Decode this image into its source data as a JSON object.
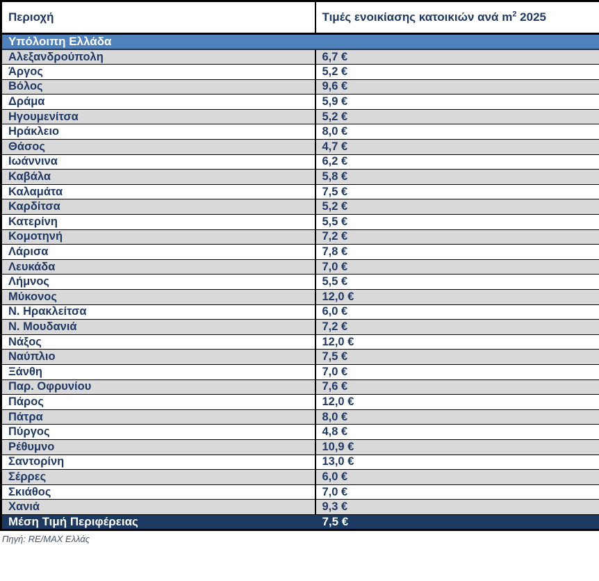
{
  "table": {
    "header": {
      "area_label": "Περιοχή",
      "price_label_prefix": "Τιμές ενοικίασης κατοικιών ανά m",
      "price_label_sup": "2",
      "price_label_suffix": " 2025"
    },
    "section_header": "Υπόλοιπη Ελλάδα",
    "rows": [
      {
        "area": "Αλεξανδρούπολη",
        "price": "6,7 €"
      },
      {
        "area": "Άργος",
        "price": "5,2 €"
      },
      {
        "area": "Βόλος",
        "price": "9,6 €"
      },
      {
        "area": "Δράμα",
        "price": "5,9 €"
      },
      {
        "area": "Ηγουμενίτσα",
        "price": "5,2 €"
      },
      {
        "area": "Ηράκλειο",
        "price": "8,0 €"
      },
      {
        "area": "Θάσος",
        "price": "4,7 €"
      },
      {
        "area": "Ιωάννινα",
        "price": "6,2 €"
      },
      {
        "area": "Καβάλα",
        "price": "5,8 €"
      },
      {
        "area": "Καλαμάτα",
        "price": "7,5 €"
      },
      {
        "area": "Καρδίτσα",
        "price": "5,2 €"
      },
      {
        "area": "Κατερίνη",
        "price": "5,5 €"
      },
      {
        "area": "Κομοτηνή",
        "price": "7,2 €"
      },
      {
        "area": "Λάρισα",
        "price": "7,8 €"
      },
      {
        "area": "Λευκάδα",
        "price": "7,0 €"
      },
      {
        "area": "Λήμνος",
        "price": "5,5 €"
      },
      {
        "area": "Μύκονος",
        "price": "12,0 €"
      },
      {
        "area": "Ν. Ηρακλείτσα",
        "price": "6,0 €"
      },
      {
        "area": "Ν. Μουδανιά",
        "price": "7,2 €"
      },
      {
        "area": "Νάξος",
        "price": "12,0 €"
      },
      {
        "area": "Ναύπλιο",
        "price": "7,5 €"
      },
      {
        "area": "Ξάνθη",
        "price": "7,0 €"
      },
      {
        "area": "Παρ. Οφρυνίου",
        "price": "7,6 €"
      },
      {
        "area": "Πάρος",
        "price": "12,0 €"
      },
      {
        "area": "Πάτρα",
        "price": "8,0 €"
      },
      {
        "area": "Πύργος",
        "price": "4,8 €"
      },
      {
        "area": "Ρέθυμνο",
        "price": "10,9 €"
      },
      {
        "area": "Σαντορίνη",
        "price": "13,0 €"
      },
      {
        "area": "Σέρρες",
        "price": "6,0 €"
      },
      {
        "area": "Σκιάθος",
        "price": "7,0 €"
      },
      {
        "area": "Χανιά",
        "price": "9,3 €"
      }
    ],
    "total_row": {
      "area": "Μέση Τιμή Περιφέρειας",
      "price": "7,5 €"
    }
  },
  "footer": {
    "source": "Πηγή: RE/MAX Ελλάς"
  },
  "colors": {
    "text_navy": "#1F3864",
    "section_blue": "#4F81BD",
    "section_border": "#17365D",
    "total_navy": "#1C3A61",
    "row_shade_gray": "#D9D9D9",
    "border_black": "#000000",
    "footer_gray_blue": "#44546A"
  }
}
